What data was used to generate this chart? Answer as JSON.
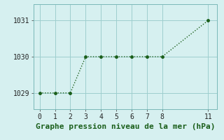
{
  "x": [
    0,
    1,
    2,
    3,
    4,
    5,
    6,
    7,
    8,
    11
  ],
  "y": [
    1029,
    1029,
    1029,
    1030,
    1030,
    1030,
    1030,
    1030,
    1030,
    1031
  ],
  "line_color": "#1a5e1a",
  "marker": "o",
  "marker_size": 2.5,
  "background_color": "#d6f0f0",
  "grid_color": "#9ecece",
  "title": "Graphe pression niveau de la mer (hPa)",
  "title_fontsize": 8,
  "xlim": [
    -0.4,
    11.6
  ],
  "ylim": [
    1028.55,
    1031.45
  ],
  "xticks": [
    0,
    1,
    2,
    3,
    4,
    5,
    6,
    7,
    8,
    11
  ],
  "yticks": [
    1029,
    1030,
    1031
  ],
  "tick_fontsize": 7,
  "linewidth": 1.0,
  "spine_color": "#7ab8b8"
}
